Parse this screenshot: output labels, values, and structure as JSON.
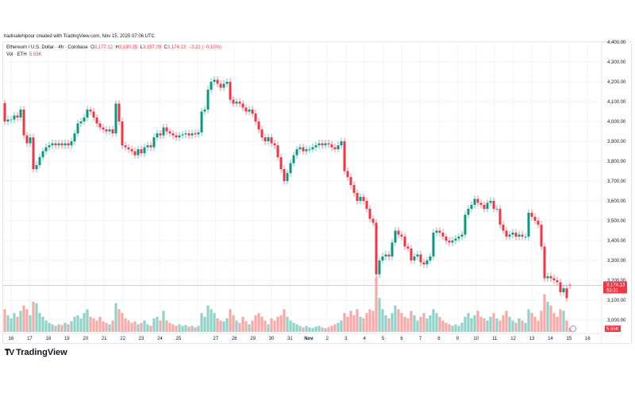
{
  "credit": "hadisalehipour created with TradingView.com, Nov 15, 2025 07:06 UTC",
  "legend": {
    "symbol": "Ethereum / U.S. Dollar · 4h · Coinbase",
    "o_label": "O",
    "o": "3,177.12",
    "h_label": "H",
    "h": "3,190.25",
    "l_label": "L",
    "l": "3,157.09",
    "c_label": "C",
    "c": "3,174.13",
    "change": "−3.21 (−0.10%)",
    "vol_label": "Vol · ETH",
    "vol": "5.55K"
  },
  "logo": "TradingView",
  "colors": {
    "up": "#089981",
    "down": "#f23645",
    "vol_up": "#8fd3c9",
    "vol_down": "#f7a9a7",
    "grid": "#f2f3f5"
  },
  "chart_data": {
    "type": "candlestick",
    "symbol": "ETH/USD",
    "interval": "4h",
    "ylim": [
      2950,
      4420
    ],
    "grid": true,
    "y_ticks": [
      "4,400.00",
      "4,300.00",
      "4,200.00",
      "4,100.00",
      "4,000.00",
      "3,900.00",
      "3,800.00",
      "3,700.00",
      "3,600.00",
      "3,500.00",
      "3,400.00",
      "3,300.00",
      "3,200.00",
      "3,100.00",
      "3,000.00"
    ],
    "x_ticks": [
      "16",
      "17",
      "18",
      "19",
      "20",
      "21",
      "22",
      "23",
      "24",
      "25",
      "",
      "27",
      "28",
      "29",
      "30",
      "31",
      "Nov",
      "2",
      "3",
      "4",
      "5",
      "6",
      "7",
      "8",
      "9",
      "10",
      "11",
      "12",
      "13",
      "14",
      "15",
      "16"
    ],
    "first_open": 4092,
    "close": [
      4000,
      4010,
      4010,
      4030,
      4020,
      4060,
      3930,
      3890,
      3920,
      3760,
      3780,
      3820,
      3850,
      3870,
      3880,
      3890,
      3880,
      3890,
      3880,
      3890,
      3880,
      3900,
      3940,
      3990,
      4000,
      4020,
      4060,
      4050,
      4020,
      3990,
      3970,
      3960,
      3950,
      3960,
      3940,
      4090,
      4000,
      3880,
      3870,
      3860,
      3850,
      3830,
      3860,
      3840,
      3870,
      3880,
      3870,
      3920,
      3940,
      3930,
      3970,
      3950,
      3940,
      3930,
      3920,
      3930,
      3935,
      3940,
      3930,
      3940,
      3935,
      3945,
      4050,
      4060,
      4160,
      4200,
      4210,
      4190,
      4170,
      4190,
      4200,
      4110,
      4090,
      4100,
      4090,
      4070,
      4050,
      4060,
      4040,
      4000,
      3960,
      3920,
      3900,
      3920,
      3890,
      3880,
      3820,
      3760,
      3700,
      3740,
      3790,
      3830,
      3860,
      3870,
      3850,
      3860,
      3860,
      3870,
      3880,
      3890,
      3880,
      3890,
      3885,
      3870,
      3860,
      3880,
      3900,
      3750,
      3720,
      3680,
      3640,
      3600,
      3620,
      3600,
      3560,
      3510,
      3490,
      3230,
      3300,
      3320,
      3330,
      3320,
      3390,
      3450,
      3430,
      3420,
      3370,
      3360,
      3300,
      3320,
      3330,
      3290,
      3280,
      3300,
      3320,
      3440,
      3450,
      3440,
      3420,
      3400,
      3390,
      3400,
      3410,
      3420,
      3430,
      3530,
      3560,
      3580,
      3610,
      3590,
      3580,
      3560,
      3590,
      3600,
      3560,
      3560,
      3480,
      3450,
      3420,
      3430,
      3440,
      3420,
      3430,
      3420,
      3420,
      3540,
      3520,
      3500,
      3480,
      3370,
      3210,
      3220,
      3210,
      3200,
      3190,
      3140,
      3160,
      3110,
      3174.13
    ],
    "last_candle": {
      "open": 3177.12,
      "high": 3190.25,
      "low": 3157.09,
      "close": 3174.13
    },
    "volume_k": [
      30,
      22,
      18,
      25,
      20,
      28,
      35,
      30,
      22,
      40,
      38,
      25,
      20,
      15,
      12,
      10,
      8,
      10,
      9,
      12,
      10,
      14,
      20,
      22,
      18,
      25,
      30,
      20,
      18,
      15,
      20,
      14,
      12,
      10,
      15,
      38,
      30,
      25,
      18,
      15,
      12,
      14,
      10,
      12,
      15,
      10,
      8,
      18,
      20,
      15,
      28,
      15,
      12,
      10,
      8,
      10,
      8,
      9,
      7,
      8,
      6,
      8,
      25,
      20,
      35,
      30,
      25,
      18,
      15,
      14,
      18,
      30,
      22,
      15,
      12,
      20,
      14,
      10,
      15,
      22,
      25,
      20,
      15,
      10,
      18,
      15,
      20,
      22,
      30,
      20,
      15,
      12,
      10,
      8,
      6,
      8,
      6,
      5,
      7,
      8,
      6,
      5,
      6,
      8,
      10,
      12,
      15,
      25,
      20,
      28,
      22,
      30,
      20,
      18,
      25,
      30,
      28,
      72,
      45,
      30,
      22,
      18,
      25,
      35,
      30,
      25,
      20,
      18,
      28,
      22,
      15,
      20,
      25,
      18,
      22,
      30,
      25,
      20,
      15,
      12,
      10,
      8,
      10,
      8,
      12,
      20,
      25,
      18,
      22,
      28,
      20,
      18,
      15,
      20,
      25,
      18,
      15,
      22,
      28,
      20,
      15,
      12,
      18,
      15,
      12,
      30,
      25,
      20,
      15,
      28,
      50,
      40,
      35,
      25,
      20,
      30,
      28,
      15,
      5.55
    ],
    "last_price_label": "3,174.13",
    "countdown": "53:31",
    "volume_label": "5.55K"
  }
}
